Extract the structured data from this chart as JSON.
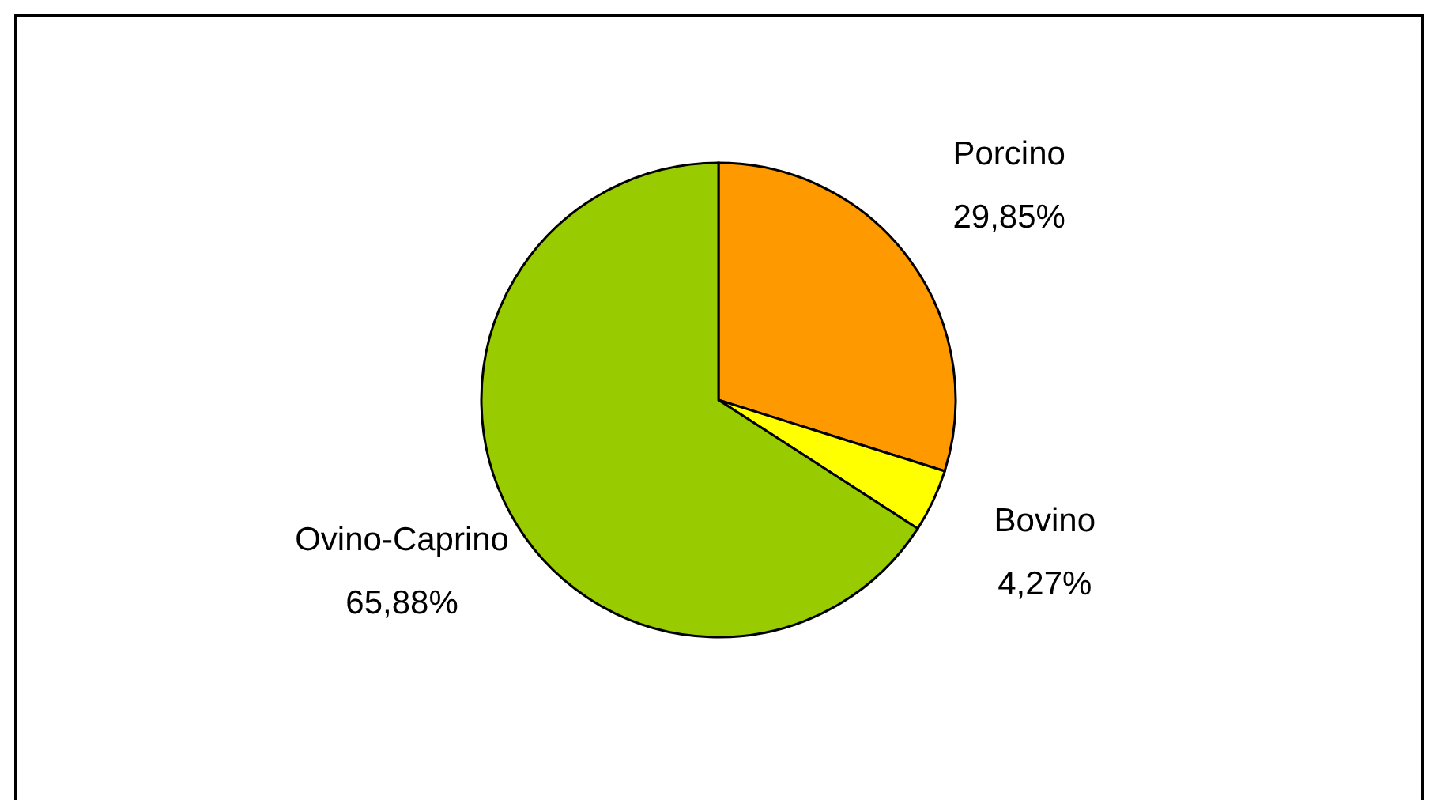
{
  "chart_data": {
    "type": "pie",
    "categories": [
      "Porcino",
      "Bovino",
      "Ovino-Caprino"
    ],
    "values": [
      29.85,
      4.27,
      65.88
    ],
    "colors": [
      "#ff9900",
      "#ffff00",
      "#99cc00"
    ],
    "value_labels": [
      "29,85%",
      "4,27%",
      "65,88%"
    ]
  }
}
